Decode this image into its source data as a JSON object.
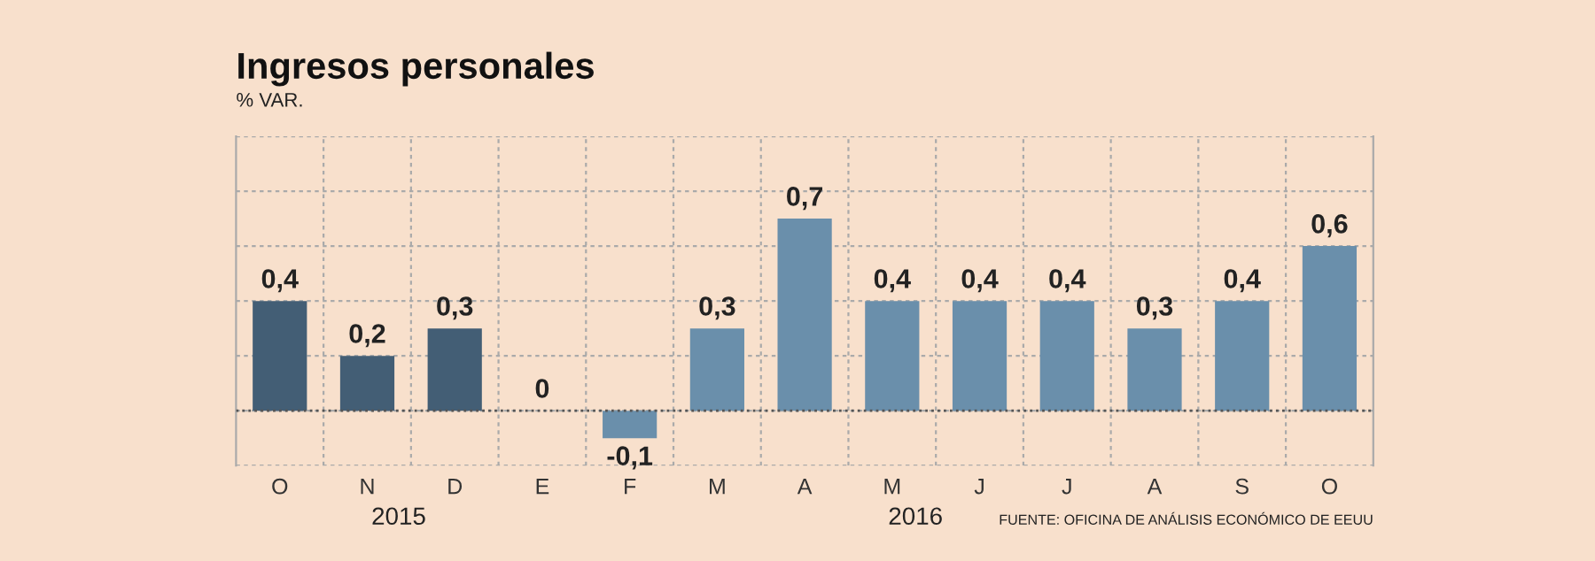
{
  "chart_data": {
    "type": "bar",
    "title": "Ingresos personales",
    "subtitle": "% VAR.",
    "categories": [
      "O",
      "N",
      "D",
      "E",
      "F",
      "M",
      "A",
      "M",
      "J",
      "J",
      "A",
      "S",
      "O"
    ],
    "values": [
      0.4,
      0.2,
      0.3,
      0,
      -0.1,
      0.3,
      0.7,
      0.4,
      0.4,
      0.4,
      0.3,
      0.4,
      0.6
    ],
    "colors": [
      "#435e75",
      "#435e75",
      "#435e75",
      "#435e75",
      "#6a8fab",
      "#6a8fab",
      "#6a8fab",
      "#6a8fab",
      "#6a8fab",
      "#6a8fab",
      "#6a8fab",
      "#6a8fab",
      "#6a8fab"
    ],
    "value_labels": [
      "0,4",
      "0,2",
      "0,3",
      "0",
      "-0,1",
      "0,3",
      "0,7",
      "0,4",
      "0,4",
      "0,4",
      "0,3",
      "0,4",
      "0,6"
    ],
    "ylim": [
      -0.2,
      1.0
    ],
    "yticks": [
      {
        "value": -0.2,
        "label": null
      },
      {
        "value": 0.0,
        "label": null
      },
      {
        "value": 0.2,
        "label": null
      },
      {
        "value": 0.4,
        "label": null
      },
      {
        "value": 0.6,
        "label": null
      },
      {
        "value": 0.8,
        "label": null
      },
      {
        "value": 1.0,
        "label": null
      }
    ],
    "grid": true,
    "ref_lines": [
      {
        "axis": "y",
        "value": 0,
        "color": "#555555",
        "line_style": "dotted"
      }
    ],
    "annotations": [
      "2015",
      "2016",
      "FUENTE: OFICINA DE ANÁLISIS ECONÓMICO DE EEUU"
    ]
  }
}
